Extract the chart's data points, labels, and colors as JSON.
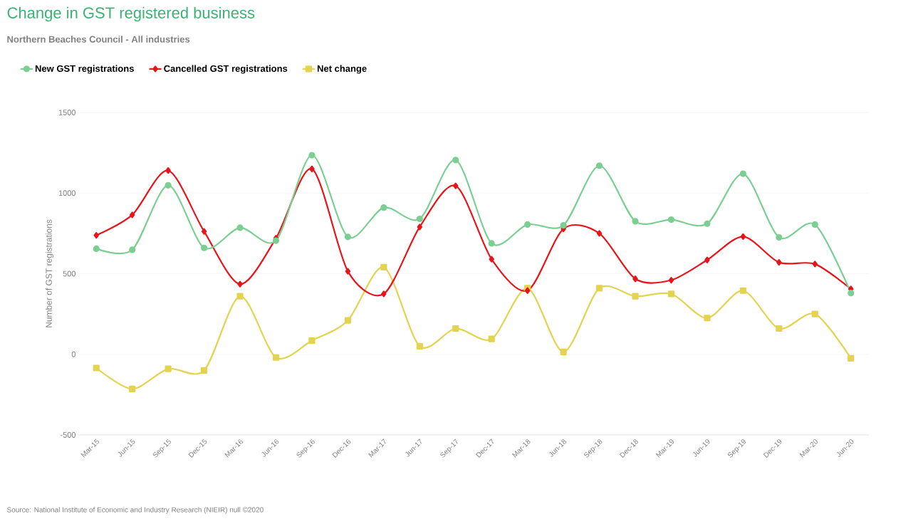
{
  "chart_data": {
    "type": "line",
    "title": "Change in GST registered business",
    "subtitle": "Northern Beaches Council - All industries",
    "ylabel": "Number of GST registrations",
    "categories": [
      "Mar-15",
      "Jun-15",
      "Sep-15",
      "Dec-15",
      "Mar-16",
      "Jun-16",
      "Sep-16",
      "Dec-16",
      "Mar-17",
      "Jun-17",
      "Sep-17",
      "Dec-17",
      "Mar-18",
      "Jun-18",
      "Sep-18",
      "Dec-18",
      "Mar-19",
      "Jun-19",
      "Sep-19",
      "Dec-19",
      "Mar-20",
      "Jun-20"
    ],
    "series": [
      {
        "name": "New GST registrations",
        "color": "#7ccf93",
        "marker": "circle",
        "values": [
          655,
          648,
          1048,
          660,
          785,
          705,
          1235,
          728,
          910,
          840,
          1205,
          688,
          805,
          800,
          1170,
          825,
          835,
          810,
          1120,
          725,
          805,
          380
        ]
      },
      {
        "name": "Cancelled GST registrations",
        "color": "#e8141a",
        "marker": "diamond",
        "values": [
          738,
          865,
          1140,
          762,
          435,
          720,
          1150,
          515,
          375,
          790,
          1045,
          590,
          395,
          778,
          750,
          468,
          460,
          585,
          730,
          570,
          560,
          405
        ]
      },
      {
        "name": "Net change",
        "color": "#e3d34f",
        "marker": "square",
        "values": [
          -85,
          -215,
          -90,
          -100,
          360,
          -20,
          85,
          210,
          540,
          50,
          160,
          95,
          410,
          15,
          410,
          360,
          375,
          225,
          395,
          160,
          250,
          -25
        ]
      }
    ],
    "ylim": [
      -500,
      1500
    ],
    "yticks": [
      -500,
      0,
      500,
      1000,
      1500
    ],
    "grid": "y",
    "legend": "top left",
    "annotations": [
      "Source: National Institute of Economic and Industry Research (NIEIR) null ©2020"
    ]
  }
}
